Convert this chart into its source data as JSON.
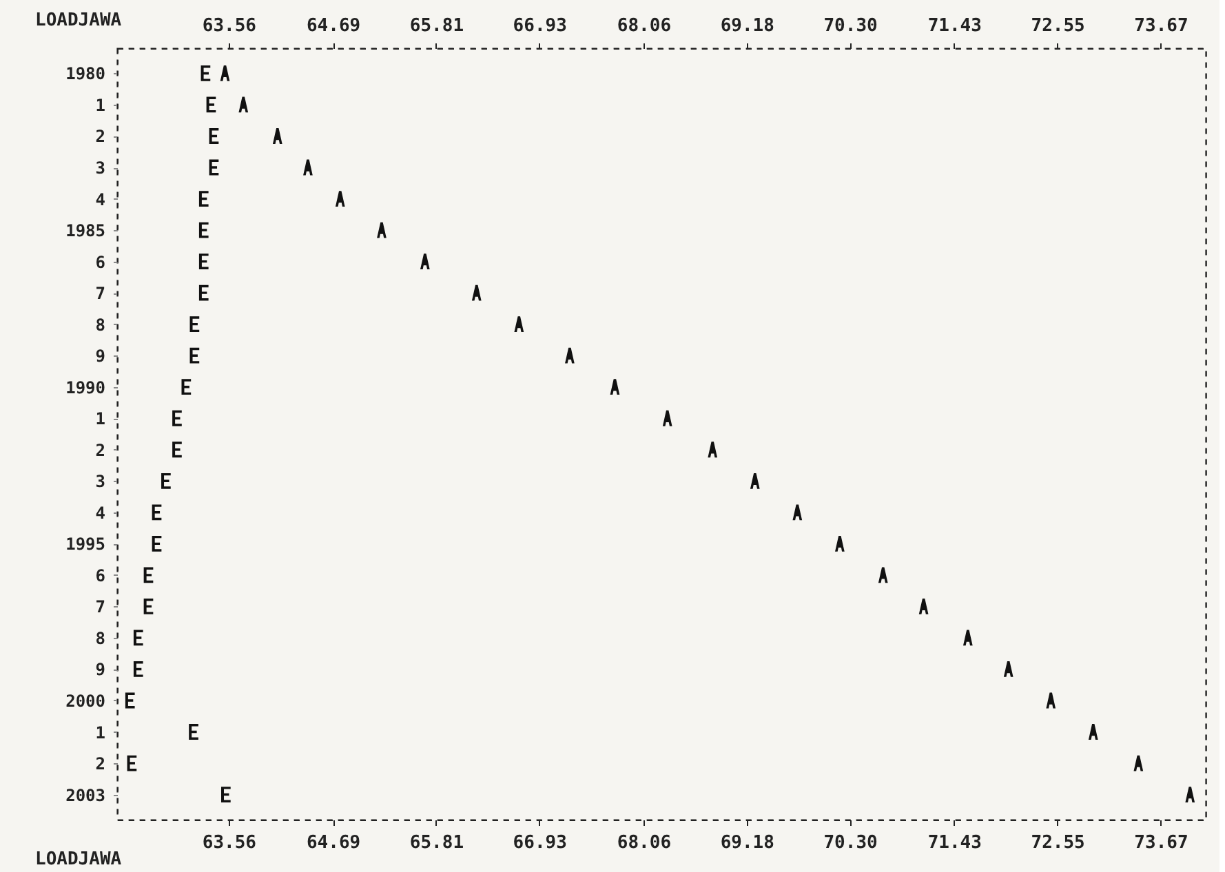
{
  "chart_data": {
    "type": "scatter",
    "orientation": "horizontal",
    "xlabel": "LOADJAWA",
    "x2label": "LOADJAWA",
    "categories": [
      "1980",
      "1",
      "2",
      "3",
      "4",
      "1985",
      "6",
      "7",
      "8",
      "9",
      "1990",
      "1",
      "2",
      "3",
      "4",
      "1995",
      "6",
      "7",
      "8",
      "9",
      "2000",
      "1",
      "2",
      "2003"
    ],
    "xlim": [
      62.35,
      74.16
    ],
    "xticks": [
      63.56,
      64.69,
      65.81,
      66.93,
      68.06,
      69.18,
      {
        "value": 70.3,
        "label": "70.30"
      },
      71.43,
      72.55,
      73.67
    ],
    "x2lim": [
      62.35,
      74.16
    ],
    "x2ticks": [
      63.56,
      64.69,
      65.81,
      66.93,
      68.06,
      69.18,
      {
        "value": 70.3,
        "label": "70.30"
      },
      71.43,
      72.55,
      73.67
    ],
    "grid": false,
    "series": [
      {
        "color": "#111111",
        "values": [
          63.31,
          63.37,
          63.4,
          63.4,
          63.29,
          63.29,
          63.29,
          63.29,
          63.19,
          63.19,
          63.1,
          63.0,
          63.0,
          62.88,
          62.78,
          62.78,
          62.69,
          62.69,
          62.58,
          62.58,
          62.49,
          63.18,
          62.51,
          63.53
        ]
      },
      {
        "color": "#111111",
        "values": [
          63.52,
          63.72,
          64.09,
          64.42,
          64.77,
          65.22,
          65.69,
          66.25,
          66.71,
          67.26,
          67.75,
          68.32,
          68.81,
          69.27,
          69.73,
          70.19,
          70.66,
          71.1,
          71.58,
          72.02,
          72.48,
          72.94,
          73.43,
          73.99
        ]
      }
    ]
  }
}
